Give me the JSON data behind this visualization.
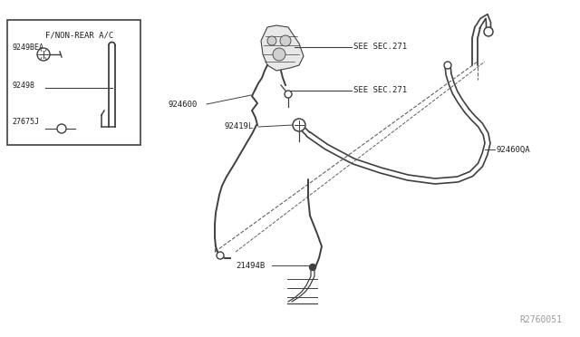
{
  "background_color": "#ffffff",
  "line_color": "#404040",
  "dashed_color": "#606060",
  "text_color": "#202020",
  "fig_width": 6.4,
  "fig_height": 3.72,
  "dpi": 100,
  "watermark": "R2760051",
  "inset_label": "F/NON-REAR A/C",
  "label_see1": "SEE SEC.271",
  "label_see2": "SEE SEC.271",
  "label_924600": "924600",
  "label_92419l": "92419L",
  "label_92460qa": "92460QA",
  "label_21494b": "21494B",
  "label_9249bea": "9249BEA",
  "label_92498": "92498",
  "label_27675j": "27675J"
}
